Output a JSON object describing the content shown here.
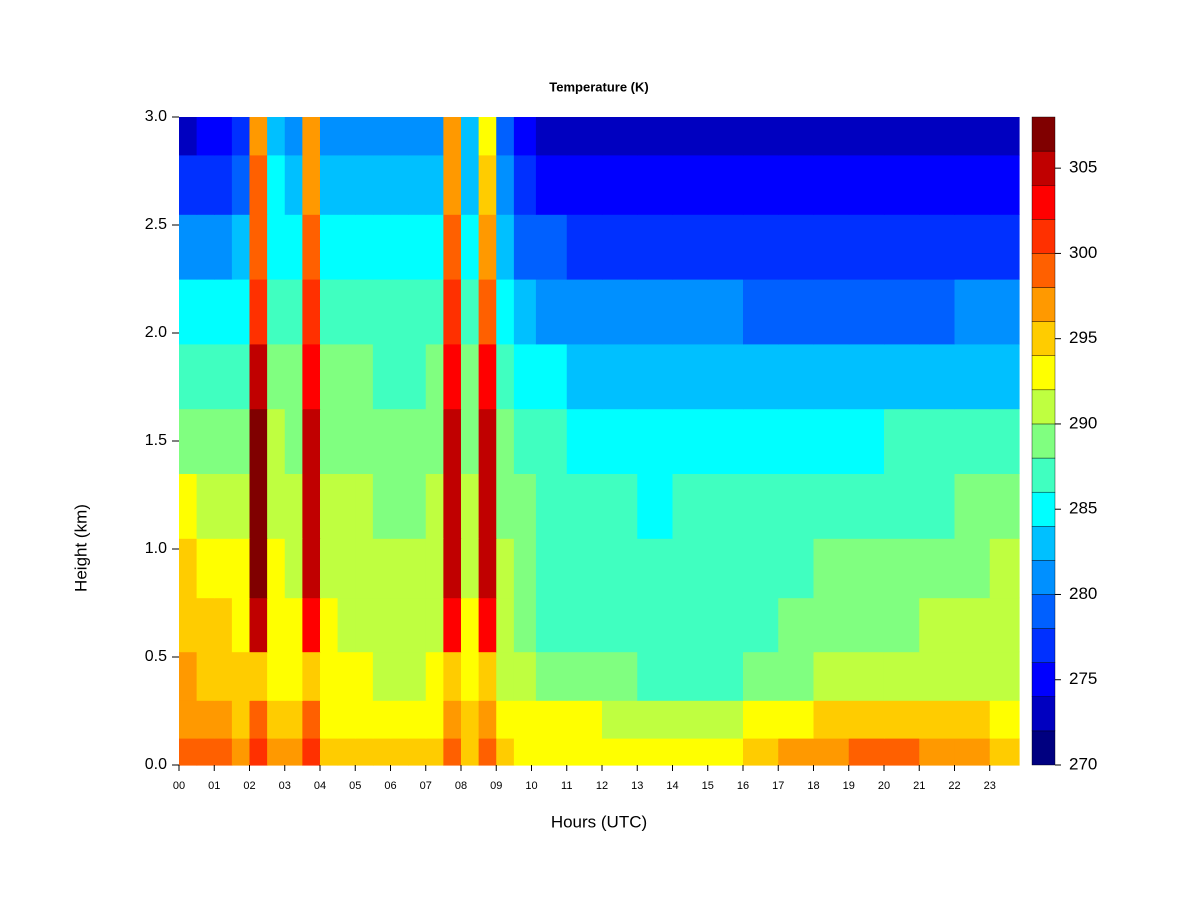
{
  "chart_data": {
    "type": "heatmap",
    "title": "Temperature (K)",
    "x_label": "Hours (UTC)",
    "y_label": "Height (km)",
    "x": [
      0.25,
      0.75,
      1.25,
      1.75,
      2.25,
      2.75,
      3.25,
      3.75,
      4.25,
      4.75,
      5.25,
      5.75,
      6.25,
      6.75,
      7.25,
      7.75,
      8.25,
      8.75,
      9.25,
      9.75,
      10.5,
      11.5,
      12.5,
      13.5,
      14.5,
      15.5,
      16.5,
      17.5,
      18.5,
      19.5,
      20.5,
      21.5,
      22.5,
      23.5
    ],
    "y": [
      0.05,
      0.2,
      0.4,
      0.65,
      0.9,
      1.2,
      1.5,
      1.8,
      2.1,
      2.4,
      2.7,
      2.95
    ],
    "z": [
      [
        299,
        298,
        298,
        297,
        300,
        296,
        296,
        300,
        295,
        295,
        295,
        295,
        294,
        294,
        295,
        298,
        295,
        298,
        294,
        293,
        293,
        293,
        292,
        292,
        292,
        293,
        294,
        296,
        297,
        298,
        298,
        297,
        297,
        294
      ],
      [
        297,
        296,
        296,
        295,
        299,
        294,
        294,
        299,
        293,
        293,
        293,
        293,
        293,
        293,
        293,
        297,
        294,
        297,
        293,
        292,
        292,
        292,
        291,
        291,
        291,
        291,
        292,
        293,
        294,
        295,
        295,
        295,
        294,
        292
      ],
      [
        296,
        295,
        295,
        294,
        295,
        293,
        292,
        295,
        292,
        292,
        292,
        291,
        291,
        291,
        292,
        294,
        293,
        294,
        291,
        290,
        289,
        288,
        288,
        287,
        287,
        287,
        288,
        289,
        290,
        291,
        291,
        291,
        291,
        291
      ],
      [
        295,
        294,
        294,
        293,
        304,
        293,
        292,
        303,
        292,
        291,
        291,
        290,
        290,
        290,
        291,
        303,
        292,
        302,
        290,
        289,
        287,
        286,
        286,
        286,
        286,
        286,
        287,
        288,
        288,
        289,
        289,
        290,
        290,
        291
      ],
      [
        294,
        293,
        293,
        292,
        306,
        292,
        291,
        305,
        291,
        290,
        290,
        290,
        290,
        290,
        291,
        305,
        291,
        304,
        290,
        289,
        287,
        286,
        286,
        286,
        286,
        286,
        287,
        287,
        288,
        288,
        288,
        289,
        289,
        290
      ],
      [
        292,
        291,
        291,
        291,
        307,
        291,
        290,
        305,
        290,
        290,
        290,
        289,
        289,
        289,
        290,
        305,
        290,
        305,
        289,
        288,
        286,
        286,
        286,
        285,
        286,
        286,
        286,
        287,
        287,
        287,
        287,
        287,
        288,
        288
      ],
      [
        289,
        289,
        289,
        289,
        306,
        290,
        289,
        304,
        289,
        289,
        289,
        288,
        288,
        288,
        289,
        304,
        289,
        304,
        288,
        287,
        286,
        285,
        285,
        285,
        285,
        285,
        285,
        285,
        285,
        285,
        286,
        286,
        286,
        286
      ],
      [
        287,
        287,
        287,
        287,
        304,
        289,
        288,
        303,
        288,
        288,
        288,
        287,
        287,
        287,
        288,
        303,
        288,
        302,
        287,
        285,
        284,
        283,
        283,
        283,
        283,
        283,
        282,
        282,
        282,
        282,
        283,
        283,
        283,
        283
      ],
      [
        284,
        284,
        284,
        285,
        301,
        287,
        286,
        300,
        287,
        286,
        286,
        286,
        286,
        286,
        286,
        300,
        287,
        298,
        285,
        282,
        281,
        280,
        280,
        280,
        280,
        280,
        279,
        279,
        279,
        279,
        279,
        279,
        280,
        280
      ],
      [
        280,
        280,
        281,
        282,
        299,
        285,
        284,
        298,
        285,
        284,
        284,
        284,
        284,
        284,
        284,
        298,
        285,
        296,
        283,
        279,
        278,
        277,
        277,
        277,
        277,
        277,
        276,
        276,
        276,
        276,
        276,
        276,
        277,
        277
      ],
      [
        276,
        277,
        277,
        279,
        298,
        284,
        282,
        297,
        283,
        282,
        282,
        282,
        282,
        282,
        282,
        297,
        283,
        294,
        281,
        276,
        275,
        275,
        275,
        275,
        275,
        275,
        274,
        274,
        274,
        274,
        274,
        274,
        275,
        275
      ],
      [
        273,
        274,
        275,
        277,
        297,
        283,
        280,
        296,
        281,
        280,
        280,
        280,
        281,
        281,
        281,
        296,
        282,
        293,
        279,
        274,
        273,
        273,
        273,
        273,
        273,
        273,
        272,
        272,
        272,
        272,
        272,
        272,
        272,
        273
      ]
    ],
    "xlim": [
      0,
      23.83
    ],
    "ylim": [
      0,
      3
    ],
    "xticks": [
      {
        "value": 0,
        "label": "00"
      },
      {
        "value": 1,
        "label": "01"
      },
      {
        "value": 2,
        "label": "02"
      },
      {
        "value": 3,
        "label": "03"
      },
      {
        "value": 4,
        "label": "04"
      },
      {
        "value": 5,
        "label": "05"
      },
      {
        "value": 6,
        "label": "06"
      },
      {
        "value": 7,
        "label": "07"
      },
      {
        "value": 8,
        "label": "08"
      },
      {
        "value": 9,
        "label": "09"
      },
      10,
      11,
      12,
      13,
      14,
      15,
      16,
      17,
      18,
      19,
      20,
      21,
      22,
      23
    ],
    "yticks": [
      {
        "value": 0,
        "label": "0.0"
      },
      0.5,
      {
        "value": 1,
        "label": "1.0"
      },
      1.5,
      {
        "value": 2,
        "label": "2.0"
      },
      2.5,
      {
        "value": 3,
        "label": "3.0"
      }
    ],
    "colorbar": {
      "levels": [
        270,
        272,
        274,
        276,
        278,
        280,
        282,
        284,
        286,
        288,
        290,
        292,
        294,
        296,
        298,
        300,
        302,
        304,
        306,
        308
      ],
      "colors": [
        "#000080",
        "#0000c0",
        "#0000ff",
        "#0030ff",
        "#0060ff",
        "#0090ff",
        "#00c0ff",
        "#00ffff",
        "#40ffc0",
        "#80ff80",
        "#bfff40",
        "#ffff00",
        "#ffcc00",
        "#ff9900",
        "#ff6000",
        "#ff3000",
        "#ff0000",
        "#c00000",
        "#800000"
      ],
      "ticks": [
        270,
        275,
        280,
        285,
        290,
        295,
        300,
        305
      ]
    }
  }
}
